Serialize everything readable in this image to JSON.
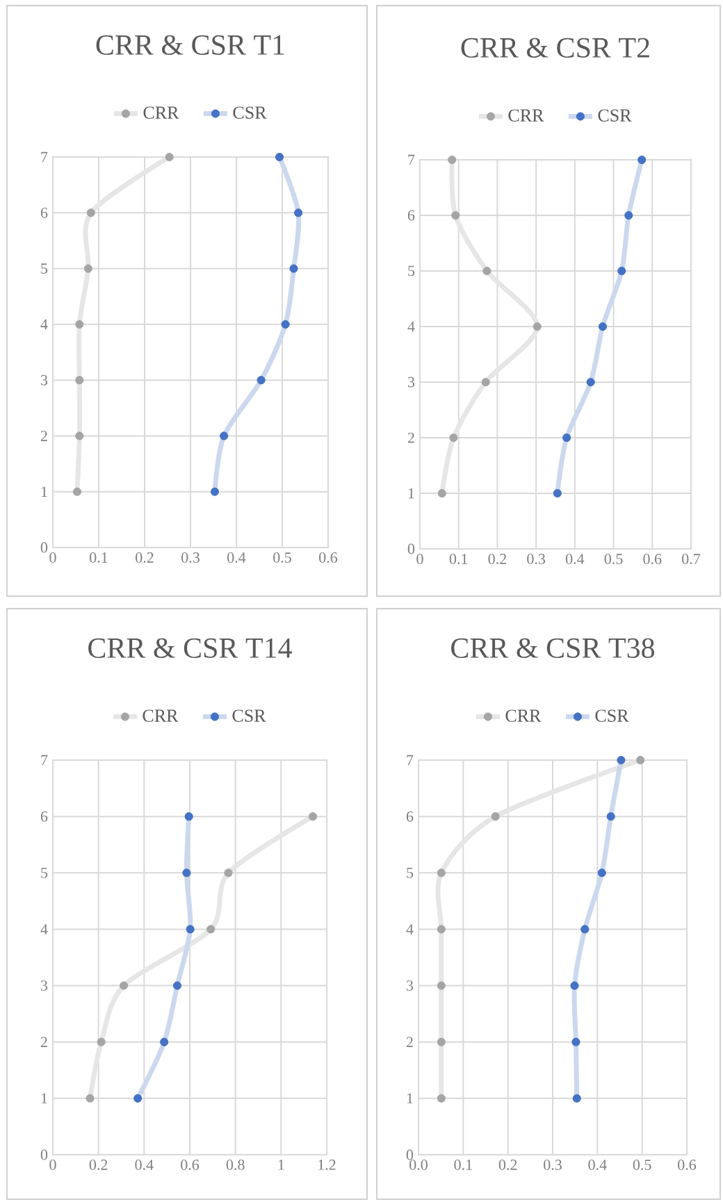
{
  "chart_data": [
    {
      "type": "line",
      "title": "CRR & CSR T1",
      "series": [
        {
          "name": "CRR",
          "color": "#a5a5a5",
          "x": [
            0.053,
            0.058,
            0.058,
            0.058,
            0.077,
            0.083,
            0.254
          ],
          "values": [
            1,
            2,
            3,
            4,
            5,
            6,
            7
          ]
        },
        {
          "name": "CSR",
          "color": "#4472c4",
          "x": [
            0.353,
            0.373,
            0.454,
            0.507,
            0.525,
            0.535,
            0.494
          ],
          "values": [
            1,
            2,
            3,
            4,
            5,
            6,
            7
          ]
        }
      ],
      "xlim": [
        0,
        0.6
      ],
      "xticks": [
        0,
        0.1,
        0.2,
        0.3,
        0.4,
        0.5,
        0.6
      ],
      "ylim": [
        0,
        7
      ],
      "yticks": [
        0,
        1,
        2,
        3,
        4,
        5,
        6,
        7
      ],
      "grid": true,
      "legend": "top",
      "marker": "circle"
    },
    {
      "type": "line",
      "title": "CRR & CSR T2",
      "series": [
        {
          "name": "CRR",
          "color": "#a5a5a5",
          "x": [
            0.057,
            0.087,
            0.17,
            0.303,
            0.173,
            0.092,
            0.083
          ],
          "values": [
            1,
            2,
            3,
            4,
            5,
            6,
            7
          ]
        },
        {
          "name": "CSR",
          "color": "#4472c4",
          "x": [
            0.355,
            0.379,
            0.441,
            0.472,
            0.521,
            0.539,
            0.573
          ],
          "values": [
            1,
            2,
            3,
            4,
            5,
            6,
            7
          ]
        }
      ],
      "xlim": [
        0,
        0.7
      ],
      "xticks": [
        0,
        0.1,
        0.2,
        0.3,
        0.4,
        0.5,
        0.6,
        0.7
      ],
      "ylim": [
        0,
        7
      ],
      "yticks": [
        0,
        1,
        2,
        3,
        4,
        5,
        6,
        7
      ],
      "grid": true,
      "legend": "top",
      "marker": "circle"
    },
    {
      "type": "line",
      "title": "CRR & CSR T14",
      "series": [
        {
          "name": "CRR",
          "color": "#a5a5a5",
          "x": [
            0.163,
            0.212,
            0.311,
            0.692,
            0.769,
            1.139
          ],
          "values": [
            1,
            2,
            3,
            4,
            5,
            6
          ]
        },
        {
          "name": "CSR",
          "color": "#4472c4",
          "x": [
            0.372,
            0.488,
            0.545,
            0.602,
            0.586,
            0.596
          ],
          "values": [
            1,
            2,
            3,
            4,
            5,
            6
          ]
        }
      ],
      "xlim": [
        0,
        1.2
      ],
      "xticks": [
        0,
        0.2,
        0.4,
        0.6,
        0.8,
        1,
        1.2
      ],
      "ylim": [
        0,
        7
      ],
      "yticks": [
        0,
        1,
        2,
        3,
        4,
        5,
        6,
        7
      ],
      "grid": true,
      "legend": "top",
      "marker": "circle"
    },
    {
      "type": "line",
      "title": "CRR & CSR T38",
      "series": [
        {
          "name": "CRR",
          "color": "#a5a5a5",
          "x": [
            0.051,
            0.051,
            0.051,
            0.051,
            0.051,
            0.172,
            0.496
          ],
          "values": [
            1,
            2,
            3,
            4,
            5,
            6,
            7
          ]
        },
        {
          "name": "CSR",
          "color": "#4472c4",
          "x": [
            0.354,
            0.352,
            0.349,
            0.372,
            0.41,
            0.43,
            0.453
          ],
          "values": [
            1,
            2,
            3,
            4,
            5,
            6,
            7
          ]
        }
      ],
      "xlim": [
        0,
        0.6
      ],
      "xticks": [
        {
          "value": 0,
          "label": "0.0"
        },
        {
          "value": 0.1,
          "label": "0.1"
        },
        {
          "value": 0.2,
          "label": "0.2"
        },
        {
          "value": 0.3,
          "label": "0.3"
        },
        {
          "value": 0.4,
          "label": "0.4"
        },
        {
          "value": 0.5,
          "label": "0.5"
        },
        {
          "value": 0.6,
          "label": "0.6"
        }
      ],
      "ylim": [
        0,
        7
      ],
      "yticks": [
        0,
        1,
        2,
        3,
        4,
        5,
        6,
        7
      ],
      "grid": true,
      "legend": "top",
      "marker": "circle"
    }
  ]
}
